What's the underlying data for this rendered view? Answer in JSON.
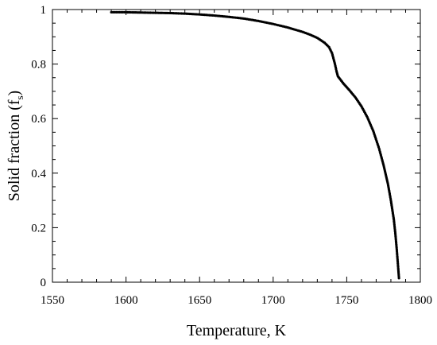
{
  "chart_data": {
    "type": "scatter",
    "xlabel": "Temperature, K",
    "ylabel": "Solid fraction (f",
    "ylabel_subscript": "s",
    "ylabel_suffix": ")",
    "xlim": [
      1550,
      1800
    ],
    "ylim": [
      0,
      1
    ],
    "x_ticks": [
      1550,
      1600,
      1650,
      1700,
      1750,
      1800
    ],
    "x_tick_labels": [
      "1550",
      "1600",
      "1650",
      "1700",
      "1750",
      "1800"
    ],
    "y_ticks": [
      0,
      0.2,
      0.4,
      0.6,
      0.8,
      1
    ],
    "y_tick_labels": [
      "0",
      "0.2",
      "0.4",
      "0.6",
      "0.8",
      "1"
    ],
    "grid": false,
    "marker_color": "#000000",
    "series": [
      {
        "points": [
          [
            1590,
            0.99
          ],
          [
            1600,
            0.99
          ],
          [
            1610,
            0.989
          ],
          [
            1620,
            0.988
          ],
          [
            1630,
            0.987
          ],
          [
            1640,
            0.985
          ],
          [
            1650,
            0.982
          ],
          [
            1660,
            0.978
          ],
          [
            1670,
            0.973
          ],
          [
            1680,
            0.967
          ],
          [
            1690,
            0.958
          ],
          [
            1700,
            0.947
          ],
          [
            1710,
            0.934
          ],
          [
            1720,
            0.918
          ],
          [
            1725,
            0.908
          ],
          [
            1730,
            0.896
          ],
          [
            1735,
            0.878
          ],
          [
            1738,
            0.862
          ],
          [
            1740,
            0.84
          ],
          [
            1742,
            0.8
          ],
          [
            1743,
            0.775
          ],
          [
            1744,
            0.755
          ],
          [
            1745,
            0.748
          ],
          [
            1748,
            0.727
          ],
          [
            1752,
            0.703
          ],
          [
            1756,
            0.677
          ],
          [
            1760,
            0.645
          ],
          [
            1764,
            0.605
          ],
          [
            1768,
            0.555
          ],
          [
            1772,
            0.49
          ],
          [
            1775,
            0.43
          ],
          [
            1778,
            0.36
          ],
          [
            1780,
            0.3
          ],
          [
            1782,
            0.23
          ],
          [
            1783,
            0.18
          ],
          [
            1784,
            0.12
          ],
          [
            1785,
            0.05
          ],
          [
            1785.5,
            0.015
          ]
        ]
      }
    ]
  }
}
